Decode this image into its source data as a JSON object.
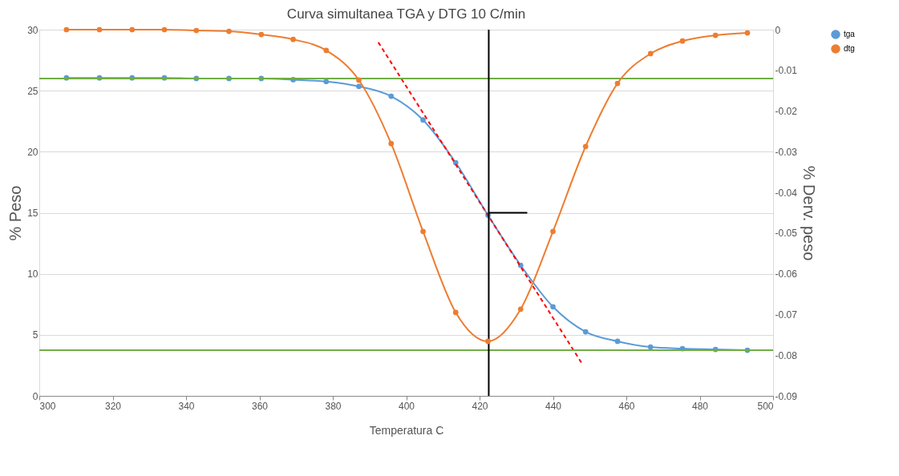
{
  "chart_data": {
    "type": "line",
    "title": "Curva simultanea TGA y DTG 10 C/min",
    "xlabel": "Temperatura C",
    "ylabel": "% Peso",
    "y2label": "% Derv. peso",
    "x": [
      307.4,
      316.4,
      325.3,
      334.1,
      342.8,
      351.7,
      360.5,
      369.2,
      378.2,
      387.1,
      395.9,
      404.6,
      413.5,
      422.3,
      431.2,
      440.0,
      448.9,
      457.6,
      466.6,
      475.3,
      484.3,
      493.0
    ],
    "series": [
      {
        "name": "tga",
        "color": "#5b9bd5",
        "values": [
          26.05,
          26.05,
          26.05,
          26.05,
          26.0,
          26.0,
          26.0,
          25.9,
          25.75,
          25.35,
          24.55,
          22.6,
          19.1,
          14.8,
          10.7,
          7.3,
          5.25,
          4.47,
          4.0,
          3.87,
          3.8,
          3.74
        ]
      },
      {
        "name": "dtg",
        "color": "#ed7d31",
        "axis": "y2",
        "values": [
          0,
          0,
          0,
          0,
          -0.0002,
          -0.0004,
          -0.0012,
          -0.0024,
          -0.0051,
          -0.0124,
          -0.028,
          -0.0496,
          -0.0695,
          -0.0766,
          -0.0687,
          -0.0496,
          -0.0287,
          -0.0132,
          -0.0059,
          -0.0028,
          -0.0014,
          -0.0008
        ]
      },
      {
        "type": "line",
        "color": "#ff0000",
        "line_style": "dashed",
        "marker": "none",
        "x": [
          392.4,
          447.8
        ],
        "values": [
          28.96,
          2.7
        ]
      },
      {
        "type": "line",
        "color": "#000000",
        "marker": "none",
        "x": [
          422.5,
          433
        ],
        "values": [
          15,
          15
        ]
      }
    ],
    "ref_lines": [
      {
        "axis": "y",
        "value": 26,
        "color": "#70ad47"
      },
      {
        "axis": "y",
        "value": 3.75,
        "color": "#70ad47"
      },
      {
        "axis": "x",
        "value": 422.5,
        "color": "#000000"
      }
    ],
    "xlim": [
      300,
      500
    ],
    "xticks": [
      300,
      320,
      340,
      360,
      380,
      400,
      420,
      440,
      460,
      480,
      500
    ],
    "ylim": [
      0,
      30
    ],
    "yticks": [
      0,
      5,
      10,
      15,
      20,
      25,
      30
    ],
    "y2lim": [
      -0.09,
      0
    ],
    "y2ticks": [
      -0.09,
      -0.08,
      -0.07,
      -0.06,
      -0.05,
      -0.04,
      -0.03,
      -0.02,
      -0.01,
      0
    ],
    "grid": "y",
    "legend": "right",
    "marker": "circle",
    "line_style": "solid"
  }
}
